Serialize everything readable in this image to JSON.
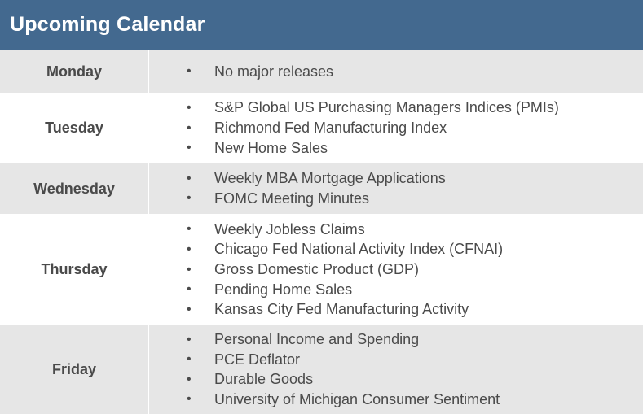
{
  "header": {
    "title": "Upcoming Calendar",
    "background_color": "#43698f"
  },
  "calendar": [
    {
      "day": "Monday",
      "events": [
        "No major releases"
      ]
    },
    {
      "day": "Tuesday",
      "events": [
        "S&P Global US Purchasing Managers Indices (PMIs)",
        "Richmond Fed Manufacturing Index",
        "New Home Sales"
      ]
    },
    {
      "day": "Wednesday",
      "events": [
        "Weekly MBA Mortgage Applications",
        "FOMC Meeting Minutes"
      ]
    },
    {
      "day": "Thursday",
      "events": [
        "Weekly Jobless Claims",
        "Chicago Fed National Activity Index (CFNAI)",
        "Gross Domestic Product (GDP)",
        "Pending Home Sales",
        "Kansas City Fed Manufacturing Activity"
      ]
    },
    {
      "day": "Friday",
      "events": [
        "Personal Income and Spending",
        "PCE Deflator",
        "Durable Goods",
        "University of Michigan Consumer Sentiment"
      ]
    }
  ],
  "bullet_glyph": "•"
}
